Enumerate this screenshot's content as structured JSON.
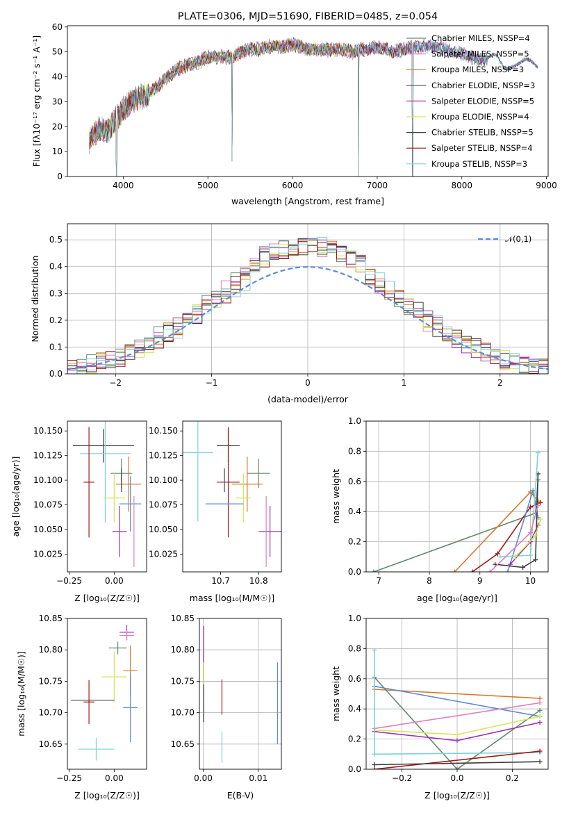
{
  "colors": {
    "Chabrier MILES": "#5e8c6a",
    "Salpeter MILES": "#e07fbc",
    "Kroupa MILES": "#d47a29",
    "Chabrier ELODIE": "#4a4a4a",
    "Salpeter ELODIE": "#9a36b0",
    "Kroupa ELODIE": "#d4e657",
    "Chabrier STELIB": "#3c3c3c",
    "Salpeter STELIB": "#a01818",
    "Kroupa STELIB": "#7ed0dc",
    "extra_blue": "#5b8bdb",
    "normal_curve": "#5b8bdb"
  },
  "chart_data": [
    {
      "id": "spectrum",
      "type": "line",
      "title": "PLATE=0306, MJD=51690, FIBERID=0485, z=0.054",
      "xlabel": "wavelength [Angstrom, rest frame]",
      "ylabel": "Flux [fλ10⁻¹⁷ erg cm⁻² s⁻¹ A⁻¹]",
      "xlim": [
        3340,
        9020
      ],
      "ylim": [
        0,
        60.5
      ],
      "xticks": [
        "4000",
        "5000",
        "6000",
        "7000",
        "8000",
        "9000"
      ],
      "yticks": [
        "0",
        "10",
        "20",
        "30",
        "40",
        "50",
        "60"
      ],
      "grid": false,
      "legend_position": "top-right",
      "legend": [
        "Chabrier MILES, NSSP=4",
        "Salpeter MILES, NSSP=5",
        "Kroupa MILES, NSSP=3",
        "Chabrier ELODIE, NSSP=3",
        "Salpeter ELODIE, NSSP=5",
        "Kroupa ELODIE, NSSP=4",
        "Chabrier STELIB, NSSP=5",
        "Salpeter STELIB, NSSP=4",
        "Kroupa STELIB, NSSP=3"
      ],
      "continuum": [
        [
          3600,
          14
        ],
        [
          3700,
          19
        ],
        [
          3800,
          18
        ],
        [
          3900,
          22
        ],
        [
          4000,
          27
        ],
        [
          4100,
          30
        ],
        [
          4200,
          32
        ],
        [
          4300,
          33
        ],
        [
          4400,
          36
        ],
        [
          4500,
          39
        ],
        [
          4600,
          42
        ],
        [
          4700,
          44
        ],
        [
          4800,
          45
        ],
        [
          4900,
          46
        ],
        [
          5000,
          48
        ],
        [
          5100,
          48
        ],
        [
          5200,
          48
        ],
        [
          5300,
          48
        ],
        [
          5400,
          50
        ],
        [
          5500,
          51
        ],
        [
          5600,
          51
        ],
        [
          5700,
          52
        ],
        [
          5800,
          52
        ],
        [
          5900,
          52
        ],
        [
          6000,
          53
        ],
        [
          6100,
          52
        ],
        [
          6200,
          51
        ],
        [
          6300,
          51
        ],
        [
          6400,
          51
        ],
        [
          6500,
          51
        ],
        [
          6600,
          51
        ],
        [
          6700,
          50
        ],
        [
          6800,
          51
        ],
        [
          6900,
          51
        ],
        [
          7000,
          52
        ],
        [
          7100,
          51
        ],
        [
          7200,
          50
        ],
        [
          7300,
          51
        ],
        [
          7400,
          52
        ],
        [
          7500,
          52
        ],
        [
          7600,
          52
        ],
        [
          7700,
          52
        ],
        [
          7800,
          51
        ],
        [
          7900,
          50
        ],
        [
          8000,
          49
        ],
        [
          8100,
          48
        ],
        [
          8200,
          47
        ],
        [
          8300,
          47
        ],
        [
          8400,
          47
        ],
        [
          8500,
          44
        ],
        [
          8600,
          46
        ],
        [
          8700,
          45
        ],
        [
          8800,
          45
        ],
        [
          8900,
          45
        ]
      ],
      "drops": [
        [
          3920,
          0
        ],
        [
          5285,
          6
        ],
        [
          6780,
          0
        ],
        [
          7420,
          0
        ]
      ]
    },
    {
      "id": "residuals",
      "type": "histogram",
      "xlabel": "(data-model)/error",
      "ylabel": "Normed distribution",
      "xlim": [
        -2.5,
        2.5
      ],
      "ylim": [
        0,
        0.56
      ],
      "xticks": [
        -2,
        -1,
        0,
        1,
        2
      ],
      "yticks": [
        "0.0",
        "0.1",
        "0.2",
        "0.3",
        "0.4",
        "0.5"
      ],
      "grid": true,
      "legend_position": "top-right",
      "legend": [
        "𝒩(0,1)"
      ]
    },
    {
      "id": "age_vs_Z",
      "type": "errorbar",
      "xlabel": "Z [log₁₀(Z/Z☉)]",
      "ylabel": "age  [log₁₀(age/yr)]",
      "xlim": [
        -0.26,
        0.18
      ],
      "ylim": [
        10.007,
        10.16
      ],
      "xticks": [
        "-0.25",
        "0.00"
      ],
      "yticks": [
        "10.025",
        "10.050",
        "10.075",
        "10.100",
        "10.125",
        "10.150"
      ],
      "grid": false,
      "points": [
        {
          "c": "Chabrier STELIB",
          "x": -0.06,
          "xe": 0.17,
          "y": 10.135,
          "ye": 0.017
        },
        {
          "c": "Kroupa STELIB",
          "x": -0.05,
          "xe": 0.14,
          "y": 10.127,
          "ye": 0.07
        },
        {
          "c": "Chabrier MILES",
          "x": 0.04,
          "xe": 0.06,
          "y": 10.107,
          "ye": 0.015
        },
        {
          "c": "Salpeter STELIB",
          "x": -0.14,
          "xe": 0.03,
          "y": 10.098,
          "ye": 0.056
        },
        {
          "c": "Kroupa MILES",
          "x": 0.08,
          "xe": 0.07,
          "y": 10.096,
          "ye": 0.028
        },
        {
          "c": "Kroupa ELODIE",
          "x": 0.0,
          "xe": 0.06,
          "y": 10.082,
          "ye": 0.025
        },
        {
          "c": "extra_blue",
          "x": 0.09,
          "xe": 0.06,
          "y": 10.076,
          "ye": 0.028
        },
        {
          "c": "Salpeter ELODIE",
          "x": 0.03,
          "xe": 0.04,
          "y": 10.048,
          "ye": 0.026
        },
        {
          "c": "Salpeter MILES",
          "x": 0.11,
          "xe": 0.0,
          "y": 10.048,
          "ye": 0.036
        },
        {
          "c": "Chabrier ELODIE",
          "x": 0.04,
          "xe": 0.0,
          "y": 10.1,
          "ye": 0.012
        }
      ]
    },
    {
      "id": "age_vs_mass",
      "type": "errorbar",
      "xlabel": "mass [log₁₀(M/M☉)]",
      "xlim": [
        10.6,
        10.86
      ],
      "ylim": [
        10.007,
        10.16
      ],
      "xticks": [
        "10.7",
        "10.8"
      ],
      "yticks": [
        "10.025",
        "10.050",
        "10.075",
        "10.100",
        "10.125",
        "10.150"
      ],
      "grid": false,
      "points": [
        {
          "c": "Chabrier STELIB",
          "x": 10.72,
          "xe": 0.03,
          "y": 10.135,
          "ye": 0.017
        },
        {
          "c": "Kroupa STELIB",
          "x": 10.64,
          "xe": 0.04,
          "y": 10.128,
          "ye": 0.07
        },
        {
          "c": "Chabrier MILES",
          "x": 10.8,
          "xe": 0.03,
          "y": 10.107,
          "ye": 0.015
        },
        {
          "c": "Salpeter STELIB",
          "x": 10.72,
          "xe": 0.03,
          "y": 10.098,
          "ye": 0.056
        },
        {
          "c": "Kroupa MILES",
          "x": 10.77,
          "xe": 0.04,
          "y": 10.096,
          "ye": 0.028
        },
        {
          "c": "Kroupa ELODIE",
          "x": 10.76,
          "xe": 0.02,
          "y": 10.082,
          "ye": 0.025
        },
        {
          "c": "extra_blue",
          "x": 10.71,
          "xe": 0.05,
          "y": 10.076,
          "ye": 0.0
        },
        {
          "c": "Salpeter ELODIE",
          "x": 10.83,
          "xe": 0.03,
          "y": 10.048,
          "ye": 0.026
        },
        {
          "c": "Salpeter MILES",
          "x": 10.82,
          "xe": 0.0,
          "y": 10.048,
          "ye": 0.036
        },
        {
          "c": "Chabrier ELODIE",
          "x": 10.71,
          "xe": 0.0,
          "y": 10.1,
          "ye": 0.012
        }
      ]
    },
    {
      "id": "weight_vs_age",
      "type": "line",
      "xlabel": "age  [log₁₀(age/yr)]",
      "ylabel": "mass weight",
      "xlim": [
        6.75,
        10.35
      ],
      "ylim": [
        0,
        1.0
      ],
      "xticks": [
        7,
        8,
        9,
        10
      ],
      "yticks": [
        "0.0",
        "0.2",
        "0.4",
        "0.6",
        "0.8",
        "1.0"
      ],
      "grid": true,
      "series": [
        {
          "c": "Chabrier MILES",
          "points": [
            [
              6.9,
              0.0
            ],
            [
              10.1,
              0.39
            ],
            [
              10.15,
              0.61
            ]
          ]
        },
        {
          "c": "Kroupa MILES",
          "points": [
            [
              8.5,
              0.0
            ],
            [
              10.0,
              0.53
            ],
            [
              10.15,
              0.47
            ]
          ]
        },
        {
          "c": "Salpeter STELIB",
          "points": [
            [
              8.85,
              0.0
            ],
            [
              9.35,
              0.12
            ],
            [
              10.0,
              0.43
            ],
            [
              10.2,
              0.46
            ]
          ]
        },
        {
          "c": "extra_blue",
          "points": [
            [
              9.55,
              0.0
            ],
            [
              10.05,
              0.54
            ],
            [
              10.15,
              0.36
            ]
          ]
        },
        {
          "c": "Chabrier STELIB",
          "points": [
            [
              9.3,
              0.05
            ],
            [
              9.85,
              0.03
            ],
            [
              10.1,
              0.08
            ],
            [
              10.15,
              0.65
            ]
          ]
        },
        {
          "c": "Kroupa STELIB",
          "points": [
            [
              9.4,
              0.1
            ],
            [
              10.0,
              0.11
            ],
            [
              10.15,
              0.79
            ]
          ]
        },
        {
          "c": "Salpeter MILES",
          "points": [
            [
              9.2,
              0.0
            ],
            [
              10.0,
              0.26
            ],
            [
              10.15,
              0.44
            ]
          ]
        },
        {
          "c": "Salpeter ELODIE",
          "points": [
            [
              9.6,
              0.05
            ],
            [
              10.0,
              0.2
            ],
            [
              10.15,
              0.31
            ]
          ]
        },
        {
          "c": "Kroupa ELODIE",
          "points": [
            [
              9.7,
              0.1
            ],
            [
              10.1,
              0.24
            ],
            [
              10.2,
              0.35
            ]
          ]
        }
      ]
    },
    {
      "id": "mass_vs_Z",
      "type": "errorbar",
      "xlabel": "Z [log₁₀(Z/Z☉)]",
      "ylabel": "mass [log₁₀(M/M☉)]",
      "xlim": [
        -0.26,
        0.18
      ],
      "ylim": [
        10.61,
        10.85
      ],
      "xticks": [
        "-0.25",
        "0.00"
      ],
      "yticks": [
        "10.65",
        "10.70",
        "10.75",
        "10.80",
        "10.85"
      ],
      "grid": false,
      "points": [
        {
          "c": "Salpeter ELODIE",
          "x": 0.07,
          "xe": 0.04,
          "y": 10.828,
          "ye": 0.012
        },
        {
          "c": "Salpeter MILES",
          "x": 0.07,
          "xe": 0.04,
          "y": 10.823,
          "ye": 0.008
        },
        {
          "c": "Chabrier MILES",
          "x": 0.02,
          "xe": 0.05,
          "y": 10.803,
          "ye": 0.01
        },
        {
          "c": "Kroupa MILES",
          "x": 0.09,
          "xe": 0.04,
          "y": 10.767,
          "ye": 0.04
        },
        {
          "c": "Kroupa ELODIE",
          "x": 0.0,
          "xe": 0.07,
          "y": 10.757,
          "ye": 0.04
        },
        {
          "c": "Chabrier STELIB",
          "x": -0.12,
          "xe": 0.12,
          "y": 10.72,
          "ye": 0.0
        },
        {
          "c": "Salpeter STELIB",
          "x": -0.14,
          "xe": 0.03,
          "y": 10.717,
          "ye": 0.035
        },
        {
          "c": "extra_blue",
          "x": 0.09,
          "xe": 0.04,
          "y": 10.708,
          "ye": 0.055
        },
        {
          "c": "Kroupa STELIB",
          "x": -0.1,
          "xe": 0.1,
          "y": 10.642,
          "ye": 0.018
        }
      ]
    },
    {
      "id": "mass_vs_ebv",
      "type": "errorbar",
      "xlabel": "E(B-V)",
      "xlim": [
        -0.0007,
        0.0142
      ],
      "ylim": [
        10.61,
        10.85
      ],
      "xticks": [
        "0.00",
        "0.01"
      ],
      "yticks": [
        "10.65",
        "10.70",
        "10.75",
        "10.80",
        "10.85"
      ],
      "grid": true,
      "points": [
        {
          "c": "Salpeter ELODIE",
          "x": 0.0001,
          "xe": 0,
          "y": 10.808,
          "ye": 0.03
        },
        {
          "c": "Kroupa ELODIE",
          "x": 0.0001,
          "xe": 0,
          "y": 10.755,
          "ye": 0.025
        },
        {
          "c": "Chabrier ELODIE",
          "x": 0.0001,
          "xe": 0,
          "y": 10.715,
          "ye": 0.03
        },
        {
          "c": "Salpeter STELIB",
          "x": 0.0034,
          "xe": 0,
          "y": 10.725,
          "ye": 0.028
        },
        {
          "c": "Kroupa STELIB",
          "x": 0.0034,
          "xe": 0,
          "y": 10.645,
          "ye": 0.025
        },
        {
          "c": "extra_blue",
          "x": 0.0135,
          "xe": 0,
          "y": 10.715,
          "ye": 0.065
        }
      ]
    },
    {
      "id": "weight_vs_Z",
      "type": "line",
      "xlabel": "Z [log₁₀(Z/Z☉)]",
      "ylabel": "mass weight",
      "xlim": [
        -0.33,
        0.33
      ],
      "ylim": [
        0,
        1.0
      ],
      "xticks": [
        "-0.2",
        "0.0",
        "0.2"
      ],
      "yticks": [
        "0.0",
        "0.2",
        "0.4",
        "0.6",
        "0.8",
        "1.0"
      ],
      "grid": true,
      "series": [
        {
          "c": "Kroupa MILES",
          "points": [
            [
              -0.3,
              0.53
            ],
            [
              0.3,
              0.47
            ]
          ]
        },
        {
          "c": "extra_blue",
          "points": [
            [
              -0.3,
              0.55
            ],
            [
              0.3,
              0.35
            ]
          ]
        },
        {
          "c": "Chabrier MILES",
          "points": [
            [
              -0.3,
              0.61
            ],
            [
              0.0,
              0.0
            ],
            [
              0.3,
              0.39
            ]
          ]
        },
        {
          "c": "Salpeter MILES",
          "points": [
            [
              -0.3,
              0.27
            ],
            [
              0.3,
              0.44
            ]
          ]
        },
        {
          "c": "Kroupa ELODIE",
          "points": [
            [
              -0.3,
              0.26
            ],
            [
              0.0,
              0.23
            ],
            [
              0.3,
              0.35
            ]
          ]
        },
        {
          "c": "Salpeter ELODIE",
          "points": [
            [
              -0.3,
              0.25
            ],
            [
              0.0,
              0.19
            ],
            [
              0.3,
              0.31
            ]
          ]
        },
        {
          "c": "Kroupa STELIB",
          "points": [
            [
              -0.3,
              0.79
            ],
            [
              -0.3,
              0.1
            ],
            [
              0.3,
              0.11
            ]
          ]
        },
        {
          "c": "Salpeter STELIB",
          "points": [
            [
              -0.3,
              0.0
            ],
            [
              0.3,
              0.12
            ]
          ]
        },
        {
          "c": "Chabrier STELIB",
          "points": [
            [
              -0.3,
              0.03
            ],
            [
              0.3,
              0.05
            ]
          ]
        }
      ]
    }
  ]
}
